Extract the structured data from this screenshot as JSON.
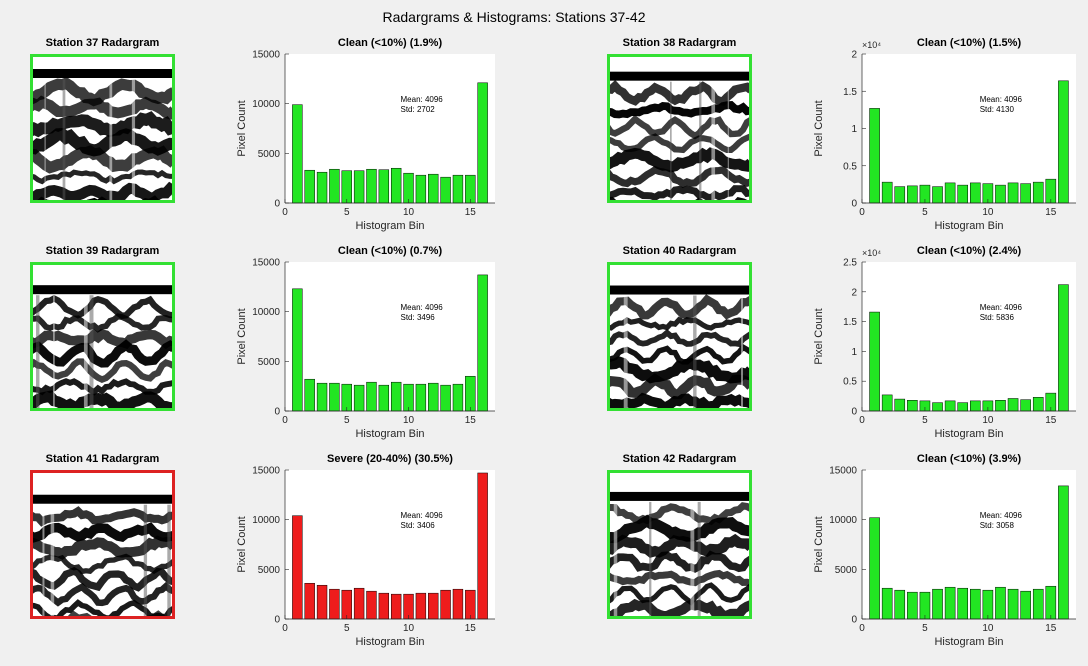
{
  "title": "Radargrams & Histograms: Stations 37-42",
  "radargrams": [
    {
      "title": "Station 37 Radargram",
      "border_color": "#33e033"
    },
    {
      "title": "Station 38 Radargram",
      "border_color": "#33e033"
    },
    {
      "title": "Station 39 Radargram",
      "border_color": "#33e033"
    },
    {
      "title": "Station 40 Radargram",
      "border_color": "#33e033"
    },
    {
      "title": "Station 41 Radargram",
      "border_color": "#dd2222"
    },
    {
      "title": "Station 42 Radargram",
      "border_color": "#33e033"
    }
  ],
  "chart_data": [
    {
      "type": "bar",
      "title": "Clean (<10%) (1.9%)",
      "xlabel": "Histogram Bin",
      "ylabel": "Pixel Count",
      "color": "#22e622",
      "annotations": [
        "Mean: 4096",
        "Std: 2702"
      ],
      "x": [
        1,
        2,
        3,
        4,
        5,
        6,
        7,
        8,
        9,
        10,
        11,
        12,
        13,
        14,
        15,
        16
      ],
      "values": [
        9900,
        3300,
        3100,
        3400,
        3250,
        3250,
        3400,
        3350,
        3500,
        3000,
        2800,
        2900,
        2600,
        2800,
        2800,
        12100
      ],
      "xlim": [
        0,
        17
      ],
      "xticks": [
        0,
        5,
        10,
        15
      ],
      "ylim": [
        0,
        15000
      ],
      "yticks": [
        0,
        5000,
        10000,
        15000
      ]
    },
    {
      "type": "bar",
      "title": "Clean (<10%) (1.5%)",
      "xlabel": "Histogram Bin",
      "ylabel": "Pixel Count",
      "color": "#22e622",
      "annotations": [
        "Mean: 4096",
        "Std: 4130"
      ],
      "y_exponent": "×10⁴",
      "x": [
        1,
        2,
        3,
        4,
        5,
        6,
        7,
        8,
        9,
        10,
        11,
        12,
        13,
        14,
        15,
        16
      ],
      "values": [
        12700,
        2800,
        2200,
        2300,
        2400,
        2200,
        2700,
        2400,
        2700,
        2600,
        2400,
        2700,
        2600,
        2800,
        3200,
        16400
      ],
      "xlim": [
        0,
        17
      ],
      "xticks": [
        0,
        5,
        10,
        15
      ],
      "ylim": [
        0,
        20000
      ],
      "yticks": [
        0,
        {
          "value": 5000,
          "label": "0.5"
        },
        {
          "value": 10000,
          "label": "1"
        },
        {
          "value": 15000,
          "label": "1.5"
        },
        {
          "value": 20000,
          "label": "2"
        }
      ]
    },
    {
      "type": "bar",
      "title": "Clean (<10%) (0.7%)",
      "xlabel": "Histogram Bin",
      "ylabel": "Pixel Count",
      "color": "#22e622",
      "annotations": [
        "Mean: 4096",
        "Std: 3496"
      ],
      "x": [
        1,
        2,
        3,
        4,
        5,
        6,
        7,
        8,
        9,
        10,
        11,
        12,
        13,
        14,
        15,
        16
      ],
      "values": [
        12300,
        3200,
        2800,
        2800,
        2700,
        2600,
        2900,
        2600,
        2900,
        2700,
        2700,
        2800,
        2600,
        2700,
        3500,
        13700
      ],
      "xlim": [
        0,
        17
      ],
      "xticks": [
        0,
        5,
        10,
        15
      ],
      "ylim": [
        0,
        15000
      ],
      "yticks": [
        0,
        5000,
        10000,
        15000
      ]
    },
    {
      "type": "bar",
      "title": "Clean (<10%) (2.4%)",
      "xlabel": "Histogram Bin",
      "ylabel": "Pixel Count",
      "color": "#22e622",
      "annotations": [
        "Mean: 4096",
        "Std: 5836"
      ],
      "y_exponent": "×10⁴",
      "x": [
        1,
        2,
        3,
        4,
        5,
        6,
        7,
        8,
        9,
        10,
        11,
        12,
        13,
        14,
        15,
        16
      ],
      "values": [
        16600,
        2700,
        2000,
        1800,
        1700,
        1400,
        1700,
        1400,
        1700,
        1700,
        1800,
        2100,
        1900,
        2300,
        3000,
        21200
      ],
      "xlim": [
        0,
        17
      ],
      "xticks": [
        0,
        5,
        10,
        15
      ],
      "ylim": [
        0,
        25000
      ],
      "yticks": [
        0,
        {
          "value": 5000,
          "label": "0.5"
        },
        {
          "value": 10000,
          "label": "1"
        },
        {
          "value": 15000,
          "label": "1.5"
        },
        {
          "value": 20000,
          "label": "2"
        },
        {
          "value": 25000,
          "label": "2.5"
        }
      ]
    },
    {
      "type": "bar",
      "title": "Severe (20-40%) (30.5%)",
      "xlabel": "Histogram Bin",
      "ylabel": "Pixel Count",
      "color": "#ee1c1c",
      "annotations": [
        "Mean: 4096",
        "Std: 3406"
      ],
      "x": [
        1,
        2,
        3,
        4,
        5,
        6,
        7,
        8,
        9,
        10,
        11,
        12,
        13,
        14,
        15,
        16
      ],
      "values": [
        10400,
        3600,
        3400,
        3000,
        2900,
        3100,
        2800,
        2600,
        2500,
        2500,
        2600,
        2600,
        2900,
        3000,
        2900,
        14700
      ],
      "xlim": [
        0,
        17
      ],
      "xticks": [
        0,
        5,
        10,
        15
      ],
      "ylim": [
        0,
        15000
      ],
      "yticks": [
        0,
        5000,
        10000,
        15000
      ]
    },
    {
      "type": "bar",
      "title": "Clean (<10%) (3.9%)",
      "xlabel": "Histogram Bin",
      "ylabel": "Pixel Count",
      "color": "#22e622",
      "annotations": [
        "Mean: 4096",
        "Std: 3058"
      ],
      "x": [
        1,
        2,
        3,
        4,
        5,
        6,
        7,
        8,
        9,
        10,
        11,
        12,
        13,
        14,
        15,
        16
      ],
      "values": [
        10200,
        3100,
        2900,
        2700,
        2700,
        3000,
        3200,
        3100,
        3000,
        2900,
        3200,
        3000,
        2800,
        3000,
        3300,
        13400
      ],
      "xlim": [
        0,
        17
      ],
      "xticks": [
        0,
        5,
        10,
        15
      ],
      "ylim": [
        0,
        15000
      ],
      "yticks": [
        0,
        5000,
        10000,
        15000
      ]
    }
  ]
}
